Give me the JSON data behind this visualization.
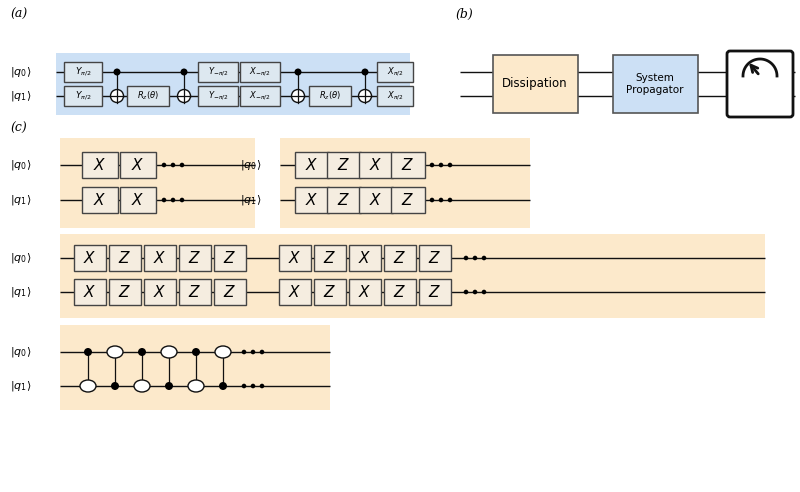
{
  "fig_width": 8.0,
  "fig_height": 4.92,
  "bg_color": "#ffffff",
  "panel_a_bg": "#cce0f5",
  "panel_c_bg": "#fce9cb",
  "diss_bg": "#fce9cb",
  "prop_bg": "#cce0f5",
  "gate_a_bg": "#dde8f0",
  "gate_c_bg": "#f5ede0",
  "wire_color": "#000000",
  "text_color": "#000000",
  "label_a": "(a)",
  "label_b": "(b)",
  "label_c": "(c)"
}
